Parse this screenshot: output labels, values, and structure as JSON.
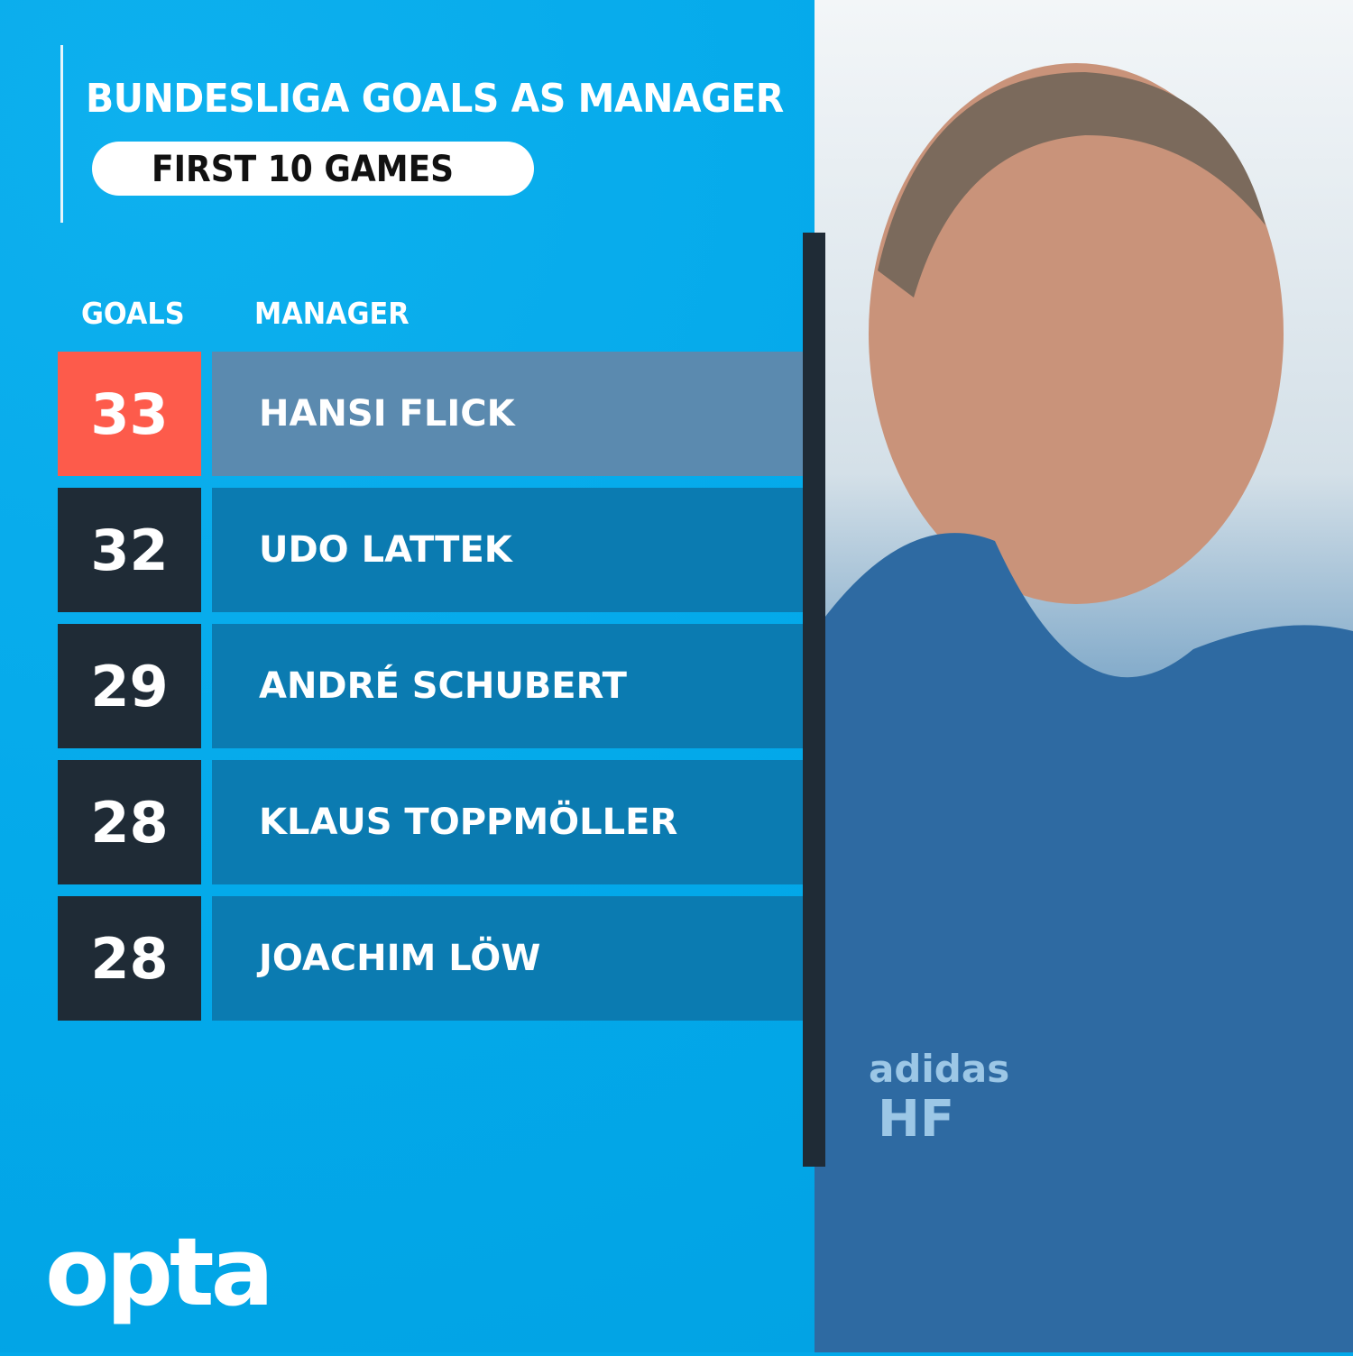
{
  "title": "BUNDESLIGA GOALS AS MANAGER",
  "subtitle": "FIRST 10 GAMES",
  "chart_data": {
    "type": "table",
    "title": "BUNDESLIGA GOALS AS MANAGER",
    "subtitle": "FIRST 10 GAMES",
    "columns": [
      "GOALS",
      "MANAGER"
    ],
    "rows": [
      {
        "goals": "33",
        "manager": "HANSI FLICK",
        "highlight": true
      },
      {
        "goals": "32",
        "manager": "UDO LATTEK",
        "highlight": false
      },
      {
        "goals": "29",
        "manager": "ANDRÉ SCHUBERT",
        "highlight": false
      },
      {
        "goals": "28",
        "manager": "KLAUS TOPPMÖLLER",
        "highlight": false
      },
      {
        "goals": "28",
        "manager": "JOACHIM LÖW",
        "highlight": false
      }
    ]
  },
  "colors": {
    "background": "#03a9ea",
    "highlight_goal": "#fd5b4b",
    "highlight_name": "#5b8aaf",
    "goal_box": "#1f2b36",
    "name_box": "#0b7bb1"
  },
  "photo": {
    "jacket_text": "HF",
    "sponsor_text": "adidas"
  },
  "logo": "opta"
}
